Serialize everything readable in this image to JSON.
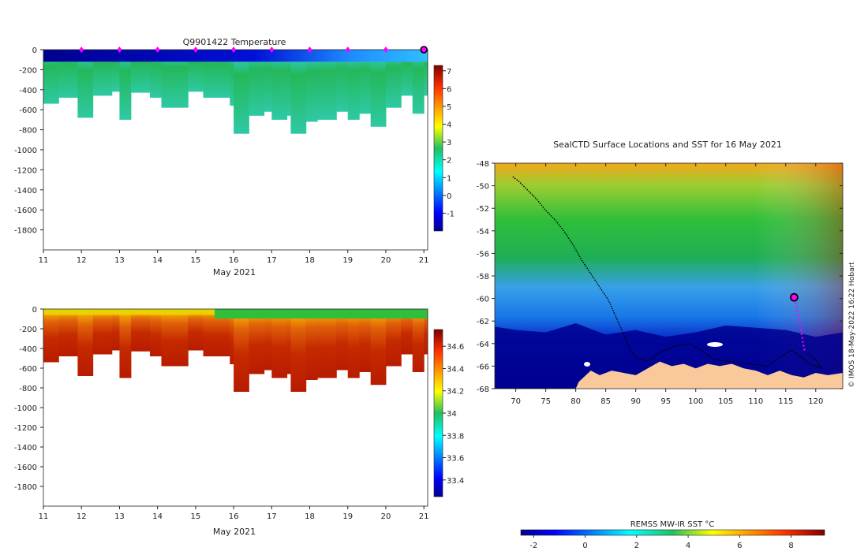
{
  "colors": {
    "temp_deep": "#2ec9a4",
    "temp_mid": "#24b85a",
    "temp_surface_west": "#00008f",
    "temp_surface_east": "#1e8cff",
    "sal_deep": "#b81c00",
    "sal_mid": "#e0600a",
    "sal_surface": "#e8d800",
    "sal_top_east": "#2fbf3a",
    "land": "#f9c89b",
    "track": "#000000",
    "recent_track": "#ff00ff"
  },
  "footer": {
    "credit": "© IMOS 18-May-2022 16:22 Hobart"
  },
  "chart_data": [
    {
      "id": "temperature",
      "type": "heatmap",
      "title": "Q9901422  Temperature",
      "xlabel": "May 2021",
      "ylabel": "",
      "xlim": [
        11,
        21.1
      ],
      "ylim": [
        -2000,
        0
      ],
      "x_ticks": [
        11,
        12,
        13,
        14,
        15,
        16,
        17,
        18,
        19,
        20,
        21
      ],
      "x_tick_labels": [
        "11",
        "12",
        "13",
        "14",
        "15",
        "16",
        "17",
        "18",
        "19",
        "20",
        "21"
      ],
      "y_ticks": [
        0,
        -200,
        -400,
        -600,
        -800,
        -1000,
        -1200,
        -1400,
        -1600,
        -1800
      ],
      "y_tick_labels": [
        "0",
        "-200",
        "-400",
        "-600",
        "-800",
        "-1000",
        "-1200",
        "-1400",
        "-1600",
        "-1800"
      ],
      "colorbar": {
        "range": [
          -2,
          7.3
        ],
        "ticks": [
          -1,
          0,
          1,
          2,
          3,
          4,
          5,
          6,
          7
        ],
        "tick_labels": [
          "-1",
          "0",
          "1",
          "2",
          "3",
          "4",
          "5",
          "6",
          "7"
        ]
      },
      "profile_markers": [
        12,
        13,
        14,
        15,
        16,
        17,
        18,
        19,
        20
      ],
      "current_marker": 21,
      "profile_max_depth": [
        [
          11,
          -540
        ],
        [
          11.4,
          -480
        ],
        [
          11.9,
          -680
        ],
        [
          12.3,
          -460
        ],
        [
          12.8,
          -420
        ],
        [
          13.0,
          -700
        ],
        [
          13.3,
          -430
        ],
        [
          13.8,
          -480
        ],
        [
          14.1,
          -580
        ],
        [
          14.8,
          -420
        ],
        [
          15.2,
          -480
        ],
        [
          15.9,
          -560
        ],
        [
          16.0,
          -840
        ],
        [
          16.4,
          -660
        ],
        [
          16.8,
          -620
        ],
        [
          17.0,
          -700
        ],
        [
          17.4,
          -660
        ],
        [
          17.5,
          -840
        ],
        [
          17.9,
          -720
        ],
        [
          18.2,
          -700
        ],
        [
          18.7,
          -620
        ],
        [
          19.0,
          -700
        ],
        [
          19.3,
          -640
        ],
        [
          19.6,
          -770
        ],
        [
          20.0,
          -580
        ],
        [
          20.4,
          -460
        ],
        [
          20.7,
          -640
        ],
        [
          21.0,
          -460
        ]
      ]
    },
    {
      "id": "salinity",
      "type": "heatmap",
      "title": "",
      "xlabel": "May 2021",
      "ylabel": "",
      "xlim": [
        11,
        21.1
      ],
      "ylim": [
        -2000,
        0
      ],
      "x_ticks": [
        11,
        12,
        13,
        14,
        15,
        16,
        17,
        18,
        19,
        20,
        21
      ],
      "x_tick_labels": [
        "11",
        "12",
        "13",
        "14",
        "15",
        "16",
        "17",
        "18",
        "19",
        "20",
        "21"
      ],
      "y_ticks": [
        0,
        -200,
        -400,
        -600,
        -800,
        -1000,
        -1200,
        -1400,
        -1600,
        -1800
      ],
      "y_tick_labels": [
        "0",
        "-200",
        "-400",
        "-600",
        "-800",
        "-1000",
        "-1200",
        "-1400",
        "-1600",
        "-1800"
      ],
      "colorbar": {
        "range": [
          33.25,
          34.75
        ],
        "ticks": [
          33.4,
          33.6,
          33.8,
          34,
          34.2,
          34.4,
          34.6
        ],
        "tick_labels": [
          "33.4",
          "33.6",
          "33.8",
          "34",
          "34.2",
          "34.4",
          "34.6"
        ]
      }
    },
    {
      "id": "sst-map",
      "type": "heatmap",
      "title": "SealCTD Surface Locations and SST for 16 May 2021",
      "xlabel": "",
      "ylabel": "",
      "xlim": [
        66.5,
        124.5
      ],
      "ylim": [
        -68,
        -48
      ],
      "x_ticks": [
        70,
        75,
        80,
        85,
        90,
        95,
        100,
        105,
        110,
        115,
        120
      ],
      "x_tick_labels": [
        "70",
        "75",
        "80",
        "85",
        "90",
        "95",
        "100",
        "105",
        "110",
        "115",
        "120"
      ],
      "y_ticks": [
        -48,
        -50,
        -52,
        -54,
        -56,
        -58,
        -60,
        -62,
        -64,
        -66,
        -68
      ],
      "y_tick_labels": [
        "-48",
        "-50",
        "-52",
        "-54",
        "-56",
        "-58",
        "-60",
        "-62",
        "-64",
        "-66",
        "-68"
      ],
      "track": [
        [
          69.5,
          -49.2
        ],
        [
          70.5,
          -49.6
        ],
        [
          72.0,
          -50.4
        ],
        [
          73.5,
          -51.2
        ],
        [
          75.0,
          -52.2
        ],
        [
          76.5,
          -53.0
        ],
        [
          78.0,
          -54.0
        ],
        [
          79.5,
          -55.2
        ],
        [
          81.0,
          -56.6
        ],
        [
          82.5,
          -57.8
        ],
        [
          84.0,
          -59.0
        ],
        [
          85.5,
          -60.2
        ],
        [
          86.5,
          -61.4
        ],
        [
          87.5,
          -62.6
        ],
        [
          88.5,
          -63.8
        ],
        [
          89.0,
          -64.6
        ],
        [
          90.0,
          -65.2
        ],
        [
          92.0,
          -65.6
        ],
        [
          94.0,
          -64.8
        ],
        [
          96.5,
          -64.2
        ],
        [
          99.0,
          -64.0
        ],
        [
          101.0,
          -64.6
        ],
        [
          103.0,
          -65.4
        ],
        [
          106.0,
          -65.6
        ],
        [
          109.0,
          -65.8
        ],
        [
          112.0,
          -66.0
        ],
        [
          114.0,
          -65.2
        ],
        [
          116.0,
          -64.6
        ],
        [
          117.5,
          -65.2
        ],
        [
          119.0,
          -65.8
        ],
        [
          121.0,
          -66.2
        ],
        [
          120.0,
          -65.4
        ],
        [
          118.5,
          -64.8
        ]
      ],
      "recent_track": [
        [
          116.5,
          -60.0
        ],
        [
          116.9,
          -61.0
        ],
        [
          117.3,
          -62.0
        ],
        [
          117.6,
          -63.0
        ],
        [
          117.9,
          -64.0
        ],
        [
          118.2,
          -64.8
        ]
      ],
      "current_position": [
        116.4,
        -59.9
      ],
      "sst_zones": [
        {
          "lat_north": -48,
          "lat_south": -52.5,
          "sst": 3.8
        },
        {
          "lat_north": -52.5,
          "lat_south": -56.5,
          "sst": 2.2
        },
        {
          "lat_north": -56.5,
          "lat_south": -60.5,
          "sst": 1.0
        },
        {
          "lat_north": -60.5,
          "lat_south": -63.0,
          "sst": 0.1
        },
        {
          "lat_north": -63.0,
          "lat_south": -68,
          "sst": -1.7
        }
      ],
      "colorbar": {
        "label": "REMSS MW-IR SST °C",
        "range": [
          -2.5,
          9.3
        ],
        "ticks": [
          -2,
          0,
          2,
          4,
          6,
          8
        ],
        "tick_labels": [
          "-2",
          "0",
          "2",
          "4",
          "6",
          "8"
        ]
      }
    }
  ]
}
